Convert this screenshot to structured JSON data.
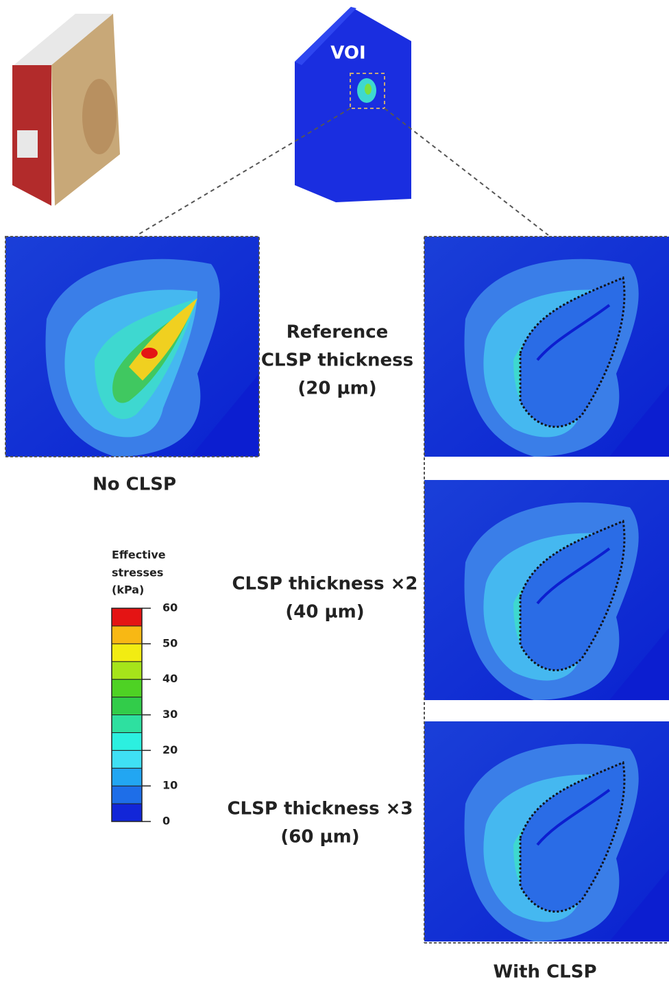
{
  "voi_label": "VOI",
  "left_panel": {
    "caption": "No CLSP"
  },
  "right_panels": {
    "caption": "With CLSP",
    "rows": [
      {
        "lines": [
          "Reference",
          "CLSP thickness",
          "(20 µm)"
        ]
      },
      {
        "lines": [
          "CLSP thickness ×2",
          "(40 µm)"
        ]
      },
      {
        "lines": [
          "CLSP thickness ×3",
          "(60 µm)"
        ]
      }
    ]
  },
  "colorbar": {
    "title": [
      "Effective",
      "stresses",
      "(kPa)"
    ],
    "lim": [
      0,
      60
    ],
    "ticks": [
      0,
      10,
      20,
      30,
      40,
      50,
      60
    ],
    "colors": [
      "#1226d8",
      "#1e6ee8",
      "#22a6f2",
      "#3fe0f4",
      "#2cf0e0",
      "#2ee0a0",
      "#32cc4a",
      "#4ed224",
      "#a6e41a",
      "#f2ec12",
      "#f8b814",
      "#e41414"
    ]
  }
}
